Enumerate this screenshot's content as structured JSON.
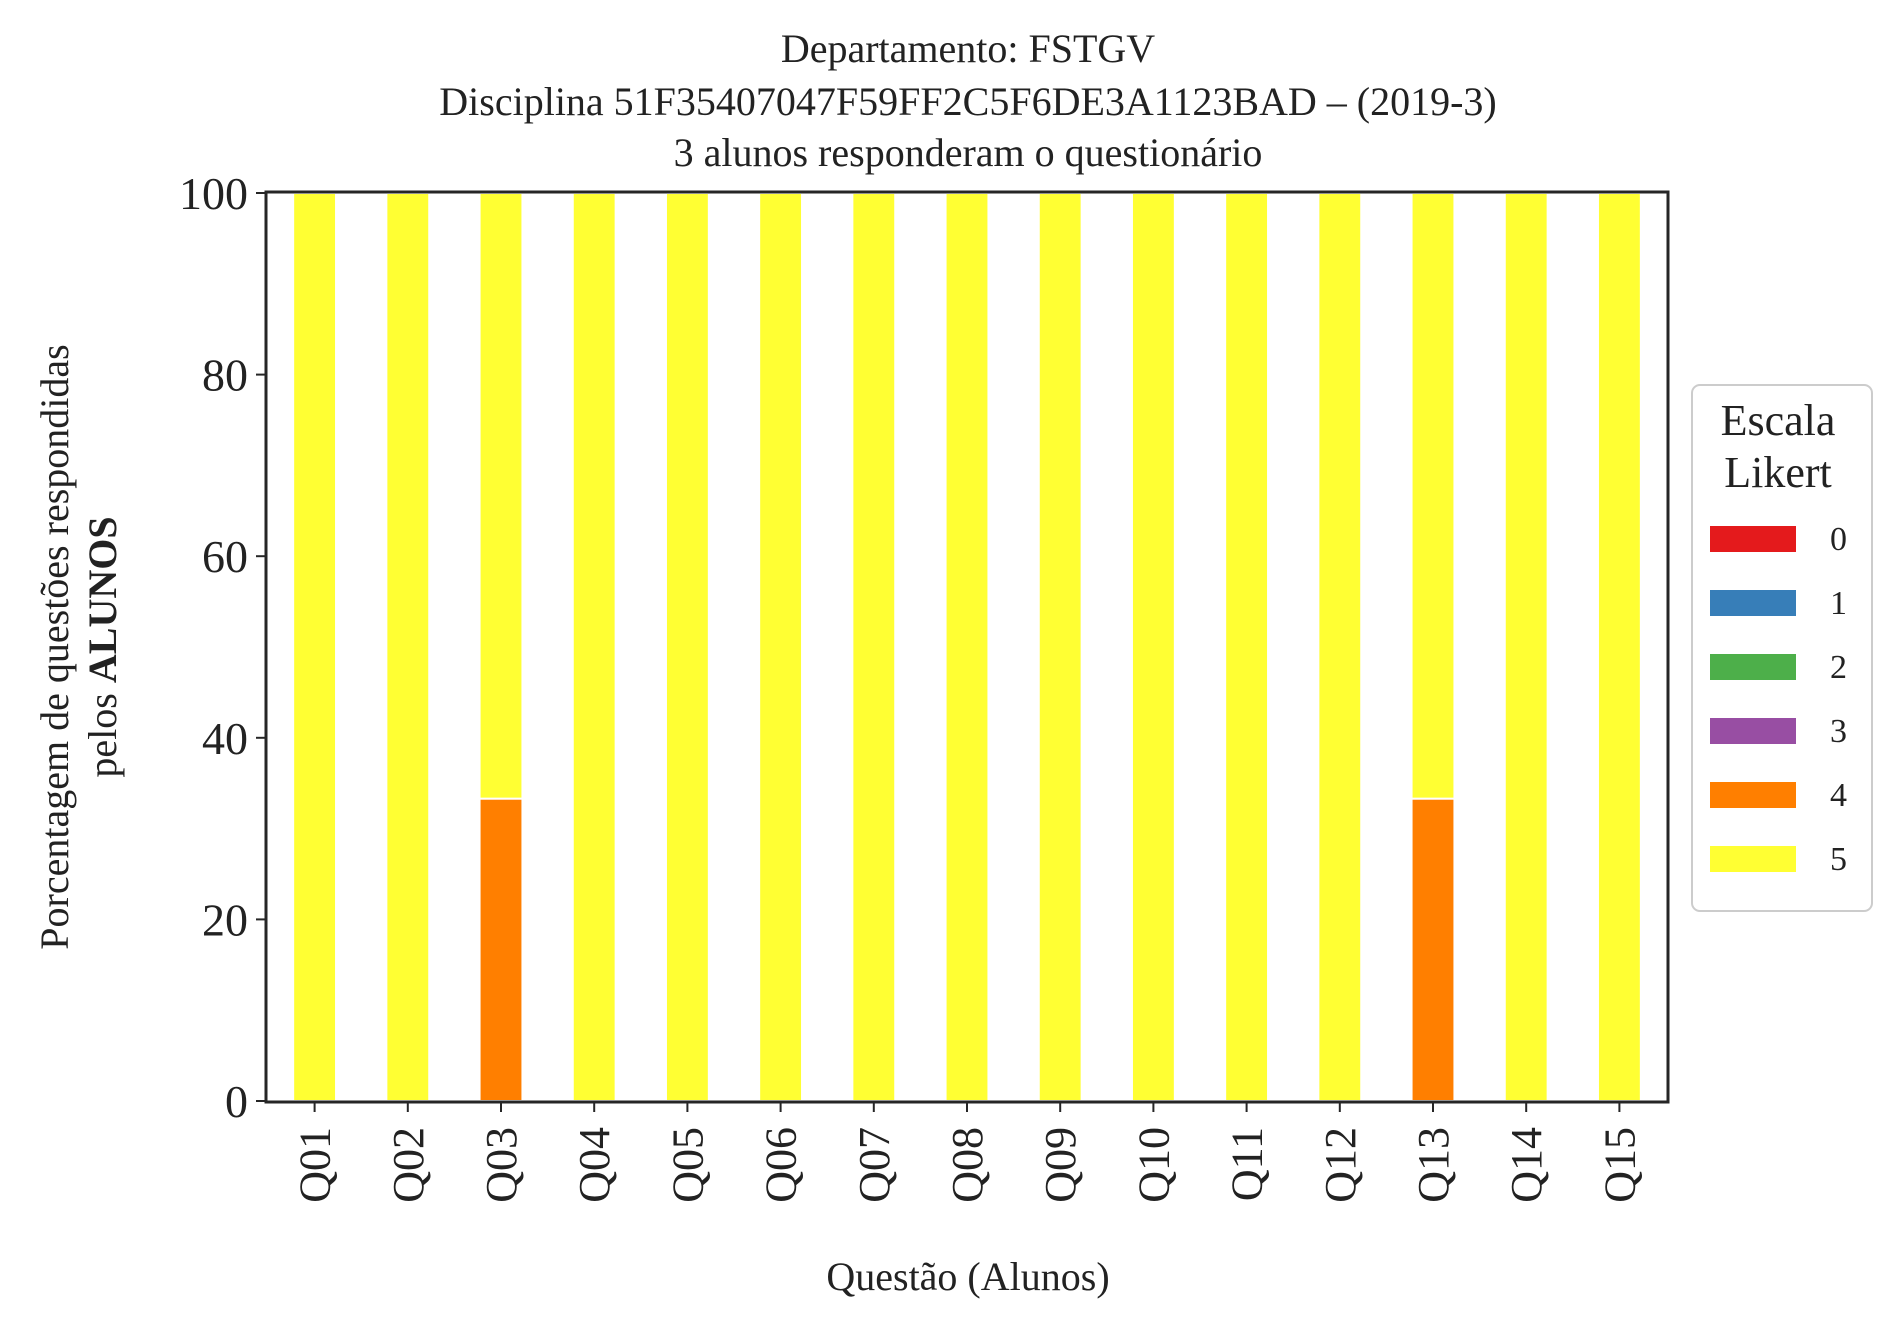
{
  "chart_data": {
    "type": "bar",
    "stacked": true,
    "title": [
      "Departamento: FSTGV",
      "Disciplina 51F35407047F59FF2C5F6DE3A1123BAD – (2019-3)",
      "3 alunos responderam o questionário"
    ],
    "xlabel": "Questão (Alunos)",
    "ylabel": {
      "line1": "Porcentagem de questões respondidas",
      "line2_prefix": "pelos ",
      "line2_bold": "ALUNOS"
    },
    "ylim": [
      0,
      100
    ],
    "yticks": [
      "0",
      "20",
      "40",
      "60",
      "80",
      "100"
    ],
    "categories": [
      "Q01",
      "Q02",
      "Q03",
      "Q04",
      "Q05",
      "Q06",
      "Q07",
      "Q08",
      "Q09",
      "Q10",
      "Q11",
      "Q12",
      "Q13",
      "Q14",
      "Q15"
    ],
    "legend": {
      "title": [
        "Escala",
        "Likert"
      ],
      "position": "center-right outside"
    },
    "grid": false,
    "series": [
      {
        "name": "0",
        "color": "#e41a1c",
        "values": [
          0,
          0,
          0,
          0,
          0,
          0,
          0,
          0,
          0,
          0,
          0,
          0,
          0,
          0,
          0
        ]
      },
      {
        "name": "1",
        "color": "#377eb8",
        "values": [
          0,
          0,
          0,
          0,
          0,
          0,
          0,
          0,
          0,
          0,
          0,
          0,
          0,
          0,
          0
        ]
      },
      {
        "name": "2",
        "color": "#4daf4a",
        "values": [
          0,
          0,
          0,
          0,
          0,
          0,
          0,
          0,
          0,
          0,
          0,
          0,
          0,
          0,
          0
        ]
      },
      {
        "name": "3",
        "color": "#984ea3",
        "values": [
          0,
          0,
          0,
          0,
          0,
          0,
          0,
          0,
          0,
          0,
          0,
          0,
          0,
          0,
          0
        ]
      },
      {
        "name": "4",
        "color": "#ff7f00",
        "values": [
          0,
          0,
          33.3,
          0,
          0,
          0,
          0,
          0,
          0,
          0,
          0,
          0,
          33.3,
          0,
          0
        ]
      },
      {
        "name": "5",
        "color": "#ffff33",
        "values": [
          100,
          100,
          66.7,
          100,
          100,
          100,
          100,
          100,
          100,
          100,
          100,
          100,
          66.7,
          100,
          100
        ]
      }
    ]
  }
}
